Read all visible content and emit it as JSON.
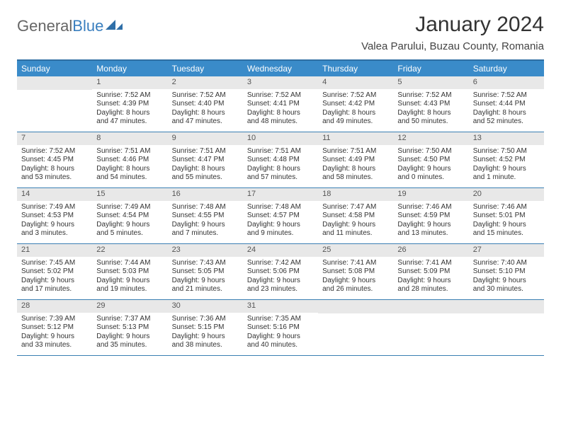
{
  "brand": {
    "part1": "General",
    "part2": "Blue"
  },
  "title": "January 2024",
  "location": "Valea Parului, Buzau County, Romania",
  "colors": {
    "header_bg": "#3a8bc9",
    "header_border": "#2f6fa3",
    "week_border": "#3a7fb3",
    "daynum_bg": "#e8e8e8",
    "text": "#333333",
    "brand_grey": "#666666",
    "brand_blue": "#3a7fbf",
    "white": "#ffffff"
  },
  "fonts": {
    "title_size": 30,
    "subtitle_size": 15,
    "header_size": 12,
    "daynum_size": 11,
    "body_size": 10
  },
  "day_headers": [
    "Sunday",
    "Monday",
    "Tuesday",
    "Wednesday",
    "Thursday",
    "Friday",
    "Saturday"
  ],
  "weeks": [
    [
      {
        "n": "",
        "sr": "",
        "ss": "",
        "dl": ""
      },
      {
        "n": "1",
        "sr": "Sunrise: 7:52 AM",
        "ss": "Sunset: 4:39 PM",
        "dl": "Daylight: 8 hours and 47 minutes."
      },
      {
        "n": "2",
        "sr": "Sunrise: 7:52 AM",
        "ss": "Sunset: 4:40 PM",
        "dl": "Daylight: 8 hours and 47 minutes."
      },
      {
        "n": "3",
        "sr": "Sunrise: 7:52 AM",
        "ss": "Sunset: 4:41 PM",
        "dl": "Daylight: 8 hours and 48 minutes."
      },
      {
        "n": "4",
        "sr": "Sunrise: 7:52 AM",
        "ss": "Sunset: 4:42 PM",
        "dl": "Daylight: 8 hours and 49 minutes."
      },
      {
        "n": "5",
        "sr": "Sunrise: 7:52 AM",
        "ss": "Sunset: 4:43 PM",
        "dl": "Daylight: 8 hours and 50 minutes."
      },
      {
        "n": "6",
        "sr": "Sunrise: 7:52 AM",
        "ss": "Sunset: 4:44 PM",
        "dl": "Daylight: 8 hours and 52 minutes."
      }
    ],
    [
      {
        "n": "7",
        "sr": "Sunrise: 7:52 AM",
        "ss": "Sunset: 4:45 PM",
        "dl": "Daylight: 8 hours and 53 minutes."
      },
      {
        "n": "8",
        "sr": "Sunrise: 7:51 AM",
        "ss": "Sunset: 4:46 PM",
        "dl": "Daylight: 8 hours and 54 minutes."
      },
      {
        "n": "9",
        "sr": "Sunrise: 7:51 AM",
        "ss": "Sunset: 4:47 PM",
        "dl": "Daylight: 8 hours and 55 minutes."
      },
      {
        "n": "10",
        "sr": "Sunrise: 7:51 AM",
        "ss": "Sunset: 4:48 PM",
        "dl": "Daylight: 8 hours and 57 minutes."
      },
      {
        "n": "11",
        "sr": "Sunrise: 7:51 AM",
        "ss": "Sunset: 4:49 PM",
        "dl": "Daylight: 8 hours and 58 minutes."
      },
      {
        "n": "12",
        "sr": "Sunrise: 7:50 AM",
        "ss": "Sunset: 4:50 PM",
        "dl": "Daylight: 9 hours and 0 minutes."
      },
      {
        "n": "13",
        "sr": "Sunrise: 7:50 AM",
        "ss": "Sunset: 4:52 PM",
        "dl": "Daylight: 9 hours and 1 minute."
      }
    ],
    [
      {
        "n": "14",
        "sr": "Sunrise: 7:49 AM",
        "ss": "Sunset: 4:53 PM",
        "dl": "Daylight: 9 hours and 3 minutes."
      },
      {
        "n": "15",
        "sr": "Sunrise: 7:49 AM",
        "ss": "Sunset: 4:54 PM",
        "dl": "Daylight: 9 hours and 5 minutes."
      },
      {
        "n": "16",
        "sr": "Sunrise: 7:48 AM",
        "ss": "Sunset: 4:55 PM",
        "dl": "Daylight: 9 hours and 7 minutes."
      },
      {
        "n": "17",
        "sr": "Sunrise: 7:48 AM",
        "ss": "Sunset: 4:57 PM",
        "dl": "Daylight: 9 hours and 9 minutes."
      },
      {
        "n": "18",
        "sr": "Sunrise: 7:47 AM",
        "ss": "Sunset: 4:58 PM",
        "dl": "Daylight: 9 hours and 11 minutes."
      },
      {
        "n": "19",
        "sr": "Sunrise: 7:46 AM",
        "ss": "Sunset: 4:59 PM",
        "dl": "Daylight: 9 hours and 13 minutes."
      },
      {
        "n": "20",
        "sr": "Sunrise: 7:46 AM",
        "ss": "Sunset: 5:01 PM",
        "dl": "Daylight: 9 hours and 15 minutes."
      }
    ],
    [
      {
        "n": "21",
        "sr": "Sunrise: 7:45 AM",
        "ss": "Sunset: 5:02 PM",
        "dl": "Daylight: 9 hours and 17 minutes."
      },
      {
        "n": "22",
        "sr": "Sunrise: 7:44 AM",
        "ss": "Sunset: 5:03 PM",
        "dl": "Daylight: 9 hours and 19 minutes."
      },
      {
        "n": "23",
        "sr": "Sunrise: 7:43 AM",
        "ss": "Sunset: 5:05 PM",
        "dl": "Daylight: 9 hours and 21 minutes."
      },
      {
        "n": "24",
        "sr": "Sunrise: 7:42 AM",
        "ss": "Sunset: 5:06 PM",
        "dl": "Daylight: 9 hours and 23 minutes."
      },
      {
        "n": "25",
        "sr": "Sunrise: 7:41 AM",
        "ss": "Sunset: 5:08 PM",
        "dl": "Daylight: 9 hours and 26 minutes."
      },
      {
        "n": "26",
        "sr": "Sunrise: 7:41 AM",
        "ss": "Sunset: 5:09 PM",
        "dl": "Daylight: 9 hours and 28 minutes."
      },
      {
        "n": "27",
        "sr": "Sunrise: 7:40 AM",
        "ss": "Sunset: 5:10 PM",
        "dl": "Daylight: 9 hours and 30 minutes."
      }
    ],
    [
      {
        "n": "28",
        "sr": "Sunrise: 7:39 AM",
        "ss": "Sunset: 5:12 PM",
        "dl": "Daylight: 9 hours and 33 minutes."
      },
      {
        "n": "29",
        "sr": "Sunrise: 7:37 AM",
        "ss": "Sunset: 5:13 PM",
        "dl": "Daylight: 9 hours and 35 minutes."
      },
      {
        "n": "30",
        "sr": "Sunrise: 7:36 AM",
        "ss": "Sunset: 5:15 PM",
        "dl": "Daylight: 9 hours and 38 minutes."
      },
      {
        "n": "31",
        "sr": "Sunrise: 7:35 AM",
        "ss": "Sunset: 5:16 PM",
        "dl": "Daylight: 9 hours and 40 minutes."
      },
      {
        "n": "",
        "sr": "",
        "ss": "",
        "dl": ""
      },
      {
        "n": "",
        "sr": "",
        "ss": "",
        "dl": ""
      },
      {
        "n": "",
        "sr": "",
        "ss": "",
        "dl": ""
      }
    ]
  ]
}
